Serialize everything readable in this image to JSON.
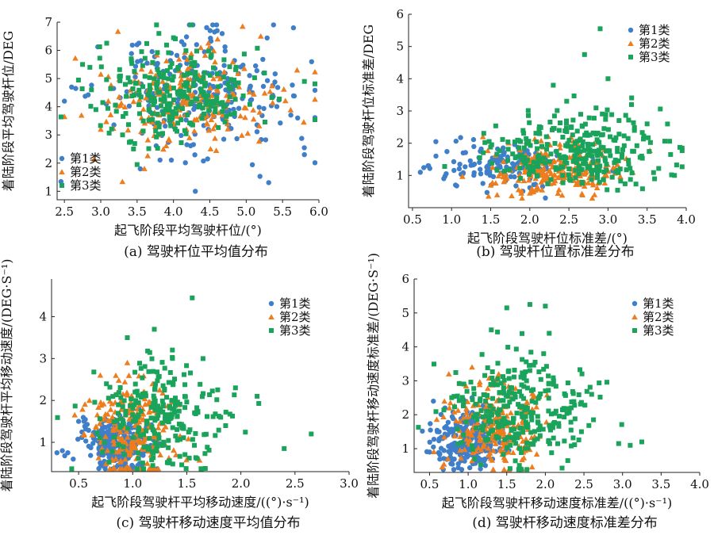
{
  "colors": {
    "c1": "#3F7FC9",
    "c2": "#EE7D1E",
    "c3": "#1AA35A"
  },
  "chart_data": [
    {
      "type": "scatter",
      "caption": "(a) 驾驶杆位平均值分布",
      "xlabel": "起飞阶段平均驾驶杆位/(°)",
      "ylabel": "着陆阶段平均驾驶杆位/DEG",
      "xlim": [
        2.4,
        6.0
      ],
      "ylim": [
        0.7,
        7.0
      ],
      "xticks": [
        "2.5",
        "3.0",
        "3.5",
        "4.0",
        "4.5",
        "5.0",
        "5.5",
        "6.0"
      ],
      "yticks": [
        "1",
        "2",
        "3",
        "4",
        "5",
        "6",
        "7"
      ],
      "legend_position": "bottom-left",
      "series": [
        {
          "name": "第1类",
          "marker": "circle",
          "count": 230,
          "cx": 4.3,
          "cy": 4.3,
          "sx": 0.65,
          "sy": 1.1,
          "extra": [
            [
              2.5,
              4.2
            ],
            [
              2.6,
              4.7
            ],
            [
              4.3,
              1.0
            ],
            [
              5.8,
              2.3
            ],
            [
              5.65,
              6.8
            ],
            [
              5.9,
              5.6
            ],
            [
              4.6,
              6.7
            ],
            [
              3.5,
              6.2
            ]
          ]
        },
        {
          "name": "第2类",
          "marker": "triangle",
          "count": 200,
          "cx": 4.2,
          "cy": 4.3,
          "sx": 0.6,
          "sy": 0.85,
          "extra": [
            [
              2.5,
              3.65
            ],
            [
              4.95,
              6.85
            ],
            [
              5.7,
              5.3
            ],
            [
              3.0,
              3.2
            ],
            [
              3.6,
              1.8
            ],
            [
              5.2,
              6.5
            ]
          ]
        },
        {
          "name": "第3类",
          "marker": "square",
          "count": 260,
          "cx": 4.0,
          "cy": 4.5,
          "sx": 0.6,
          "sy": 0.85,
          "extra": [
            [
              2.75,
              5.5
            ],
            [
              2.85,
              5.4
            ],
            [
              4.0,
              6.45
            ],
            [
              5.8,
              4.9
            ],
            [
              3.8,
              6.6
            ],
            [
              3.3,
              3.0
            ],
            [
              3.5,
              1.95
            ]
          ]
        }
      ]
    },
    {
      "type": "scatter",
      "caption": "(b) 驾驶杆位置标准差分布",
      "xlabel": "起飞阶段驾驶杆位标准差/(°)",
      "ylabel": "着陆阶段驾驶杆位标准差/DEG",
      "xlim": [
        0.45,
        4.0
      ],
      "ylim": [
        0.0,
        6.0
      ],
      "xticks": [
        "0.5",
        "1.0",
        "1.5",
        "2.0",
        "2.5",
        "3.0",
        "3.5",
        "4.0"
      ],
      "yticks": [
        "1",
        "2",
        "3",
        "4",
        "5",
        "6"
      ],
      "legend_position": "top-right",
      "series": [
        {
          "name": "第1类",
          "marker": "circle",
          "count": 130,
          "cx": 1.7,
          "cy": 1.3,
          "sx": 0.4,
          "sy": 0.35,
          "extra": [
            [
              0.6,
              1.1
            ],
            [
              0.7,
              1.3
            ],
            [
              0.8,
              1.6
            ],
            [
              0.9,
              0.9
            ],
            [
              1.05,
              0.7
            ],
            [
              2.2,
              0.3
            ]
          ]
        },
        {
          "name": "第2类",
          "marker": "triangle",
          "count": 220,
          "cx": 2.35,
          "cy": 1.2,
          "sx": 0.4,
          "sy": 0.4,
          "extra": [
            [
              1.4,
              2.2
            ],
            [
              1.5,
              0.7
            ],
            [
              2.0,
              0.45
            ]
          ]
        },
        {
          "name": "第3类",
          "marker": "square",
          "count": 300,
          "cx": 2.6,
          "cy": 1.8,
          "sx": 0.55,
          "sy": 0.6,
          "extra": [
            [
              2.9,
              5.55
            ],
            [
              2.7,
              4.75
            ],
            [
              3.0,
              4.0
            ],
            [
              2.3,
              3.8
            ],
            [
              3.5,
              2.6
            ],
            [
              3.85,
              1.0
            ],
            [
              3.8,
              1.65
            ],
            [
              3.3,
              3.2
            ]
          ]
        }
      ]
    },
    {
      "type": "scatter",
      "caption": "(c) 驾驶杆移动速度平均值分布",
      "xlabel": "起飞阶段驾驶杆平均移动速度/((°)·s⁻¹)",
      "ylabel": "着陆阶段驾驶杆平均移动速度/(DEG·S⁻¹)",
      "xlim": [
        0.25,
        3.0
      ],
      "ylim": [
        0.3,
        4.9
      ],
      "xticks": [
        "0.5",
        "1.0",
        "1.5",
        "2.0",
        "2.5",
        "3.0"
      ],
      "yticks": [
        "1",
        "2",
        "3",
        "4"
      ],
      "legend_position": "top-right",
      "series": [
        {
          "name": "第1类",
          "marker": "circle",
          "count": 260,
          "cx": 0.85,
          "cy": 0.95,
          "sx": 0.15,
          "sy": 0.3,
          "extra": [
            [
              0.3,
              0.75
            ],
            [
              0.35,
              0.8
            ],
            [
              0.4,
              0.75
            ],
            [
              0.5,
              1.5
            ],
            [
              0.55,
              1.5
            ],
            [
              0.45,
              0.6
            ]
          ]
        },
        {
          "name": "第2类",
          "marker": "triangle",
          "count": 220,
          "cx": 1.0,
          "cy": 1.3,
          "sx": 0.18,
          "sy": 0.55,
          "extra": [
            [
              0.7,
              2.6
            ],
            [
              0.6,
              2.0
            ],
            [
              0.95,
              2.9
            ],
            [
              0.55,
              1.2
            ],
            [
              1.4,
              0.7
            ]
          ]
        },
        {
          "name": "第3类",
          "marker": "square",
          "count": 260,
          "cx": 1.25,
          "cy": 1.6,
          "sx": 0.28,
          "sy": 0.6,
          "extra": [
            [
              1.55,
              4.45
            ],
            [
              2.65,
              1.2
            ],
            [
              2.4,
              0.85
            ],
            [
              2.15,
              2.1
            ],
            [
              1.95,
              2.3
            ],
            [
              1.2,
              3.7
            ],
            [
              0.95,
              3.5
            ],
            [
              1.65,
              3.0
            ]
          ]
        }
      ]
    },
    {
      "type": "scatter",
      "caption": "(d) 驾驶杆移动速度标准差分布",
      "xlabel": "起飞阶段驾驶杆移动速度标准差/((°)·s⁻¹)",
      "ylabel": "着陆阶段驾驶杆移动速度标准差/(DEG·S⁻¹)",
      "xlim": [
        0.3,
        4.0
      ],
      "ylim": [
        0.3,
        6.0
      ],
      "xticks": [
        "0.5",
        "1.0",
        "1.5",
        "2.0",
        "2.5",
        "3.0",
        "3.5",
        "4.0"
      ],
      "yticks": [
        "1",
        "2",
        "3",
        "4",
        "5",
        "6"
      ],
      "legend_position": "top-right",
      "series": [
        {
          "name": "第1类",
          "marker": "circle",
          "count": 230,
          "cx": 1.0,
          "cy": 1.25,
          "sx": 0.22,
          "sy": 0.45,
          "extra": [
            [
              0.5,
              0.9
            ],
            [
              0.55,
              1.05
            ],
            [
              0.6,
              1.5
            ],
            [
              0.55,
              2.4
            ],
            [
              0.7,
              2.2
            ]
          ]
        },
        {
          "name": "第2类",
          "marker": "triangle",
          "count": 220,
          "cx": 1.3,
          "cy": 1.6,
          "sx": 0.3,
          "sy": 0.6,
          "extra": [
            [
              0.75,
              3.2
            ],
            [
              1.05,
              3.4
            ],
            [
              1.7,
              0.4
            ]
          ]
        },
        {
          "name": "第3类",
          "marker": "square",
          "count": 300,
          "cx": 1.65,
          "cy": 2.1,
          "sx": 0.42,
          "sy": 0.75,
          "extra": [
            [
              1.8,
              5.25
            ],
            [
              2.0,
              5.2
            ],
            [
              1.5,
              5.15
            ],
            [
              2.05,
              4.4
            ],
            [
              2.95,
              1.15
            ],
            [
              3.1,
              1.1
            ],
            [
              3.25,
              1.2
            ],
            [
              2.6,
              2.6
            ],
            [
              1.3,
              4.5
            ]
          ]
        }
      ]
    }
  ]
}
